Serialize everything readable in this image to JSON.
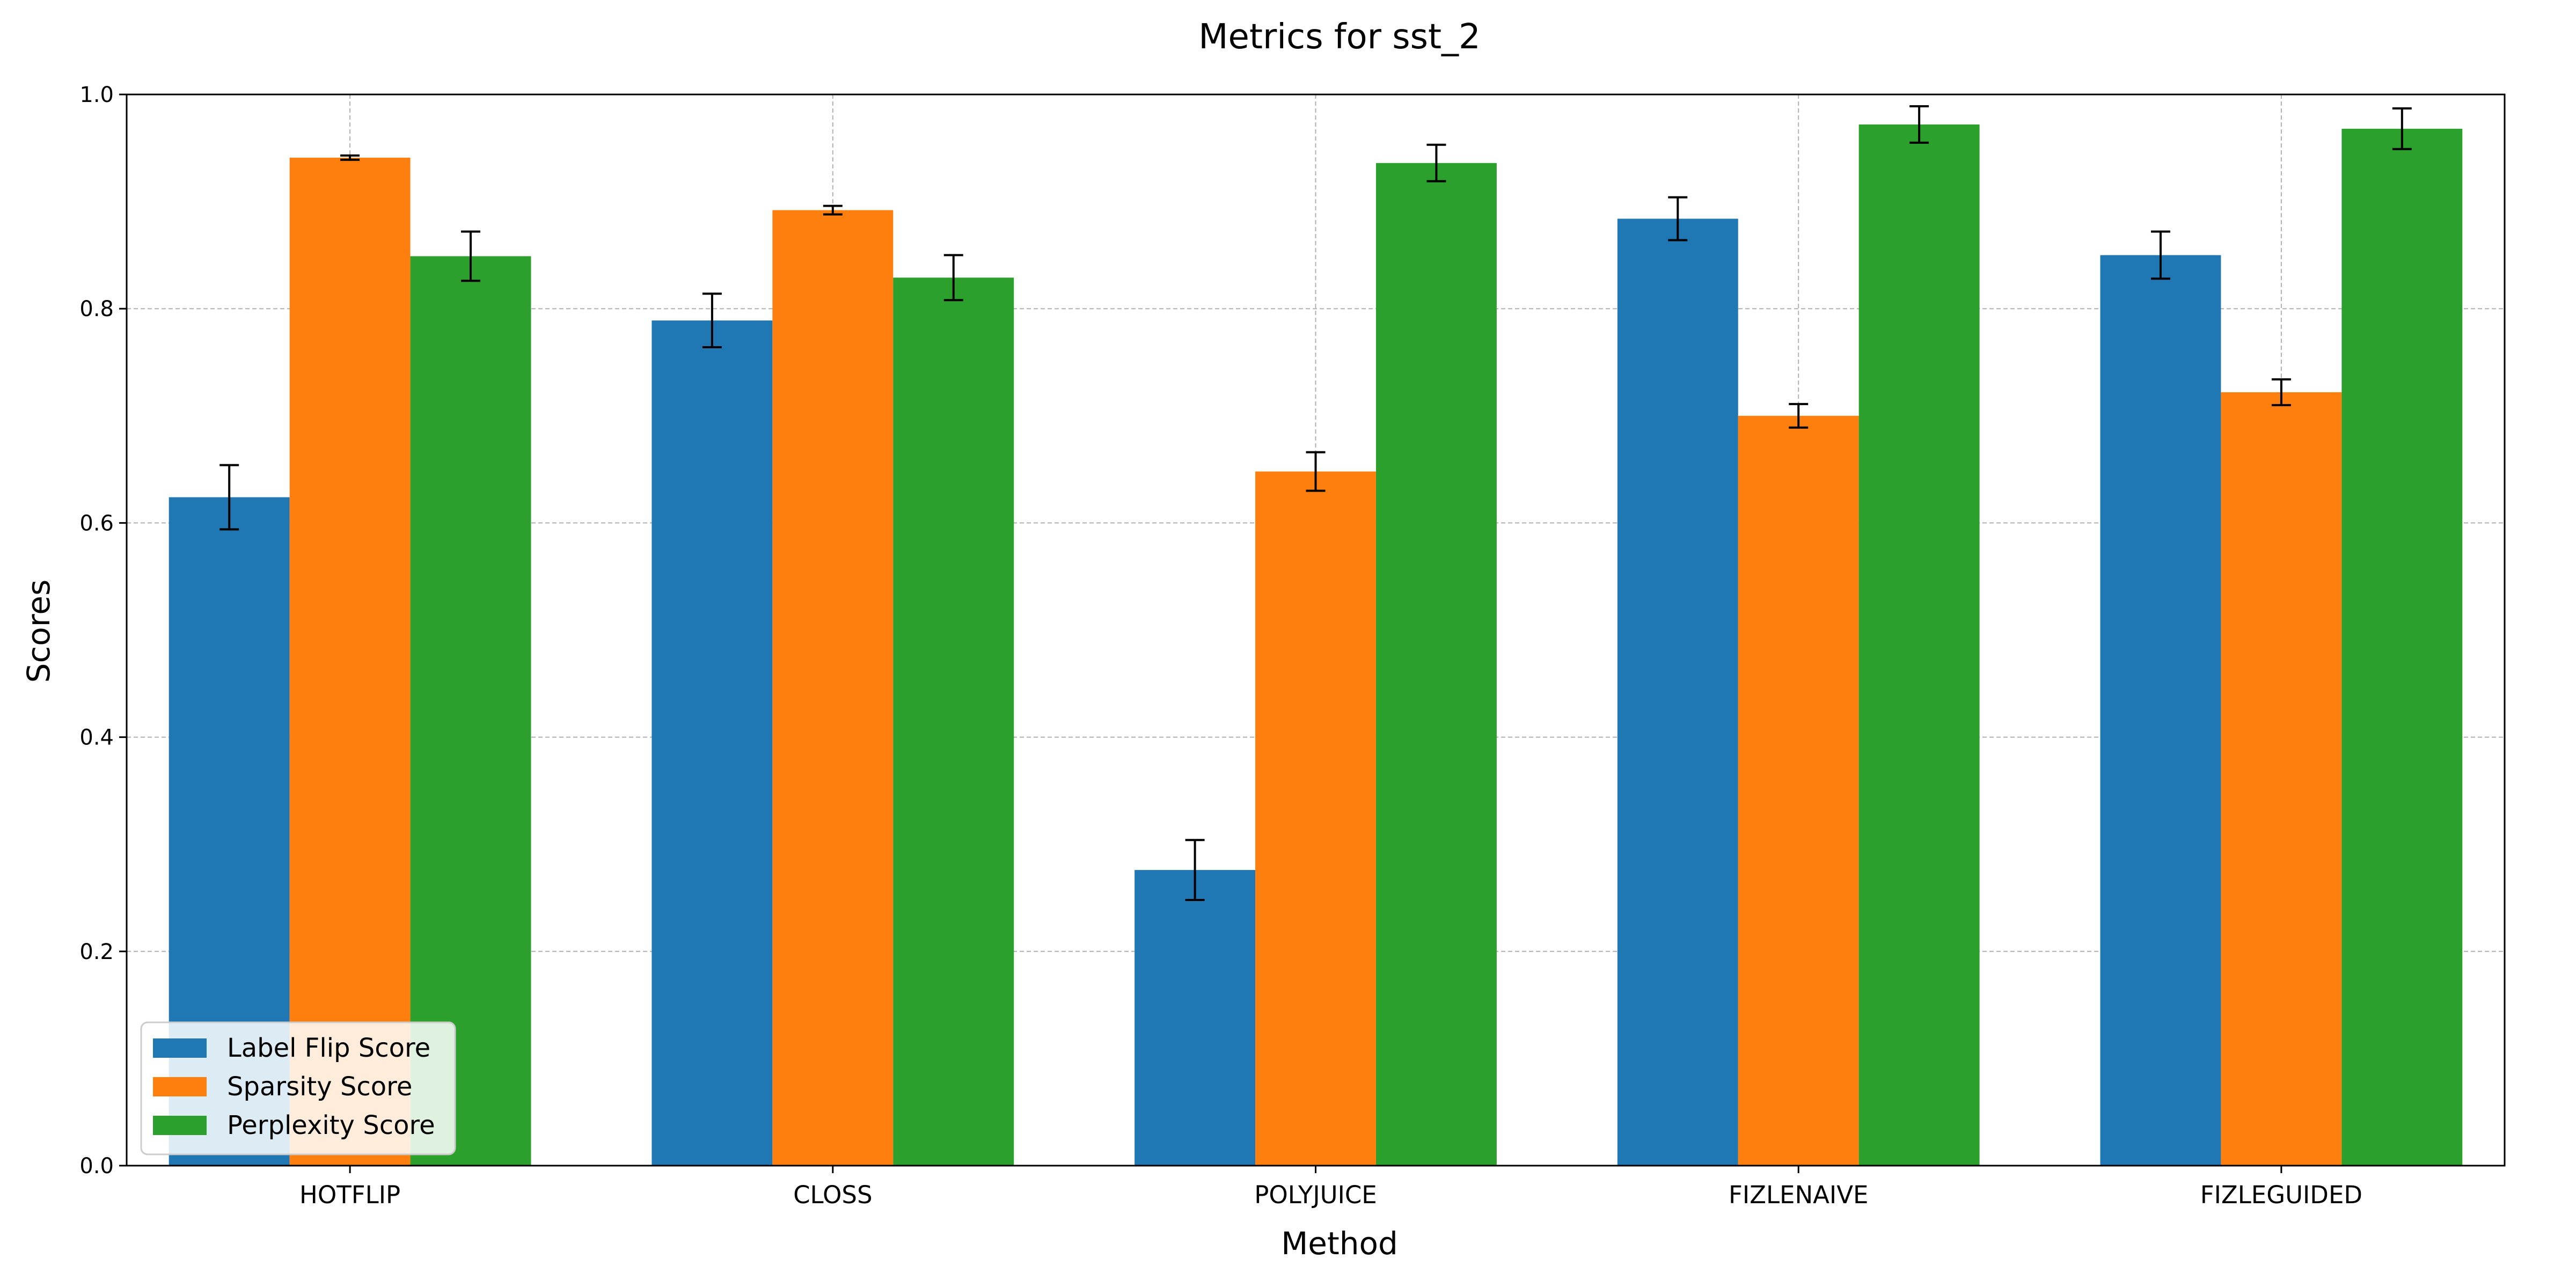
{
  "chart_data": {
    "type": "bar",
    "title": "Metrics for sst_2",
    "xlabel": "Method",
    "ylabel": "Scores",
    "ylim": [
      0,
      1.0
    ],
    "yticks": [
      "0.0",
      "0.2",
      "0.4",
      "0.6",
      "0.8",
      "1.0"
    ],
    "categories": [
      "HOTFLIP",
      "CLOSS",
      "POLYJUICE",
      "FIZLENAIVE",
      "FIZLEGUIDED"
    ],
    "grid": true,
    "legend_position": "bottom-left",
    "series": [
      {
        "name": "Label Flip Score",
        "color": "#1f77b4",
        "values": [
          0.624,
          0.789,
          0.276,
          0.884,
          0.85
        ],
        "errors": [
          0.03,
          0.025,
          0.028,
          0.02,
          0.022
        ]
      },
      {
        "name": "Sparsity Score",
        "color": "#ff7f0e",
        "values": [
          0.941,
          0.892,
          0.648,
          0.7,
          0.722
        ],
        "errors": [
          0.002,
          0.004,
          0.018,
          0.011,
          0.012
        ]
      },
      {
        "name": "Perplexity Score",
        "color": "#2ca02c",
        "values": [
          0.849,
          0.829,
          0.936,
          0.972,
          0.968
        ],
        "errors": [
          0.023,
          0.021,
          0.017,
          0.017,
          0.019
        ]
      }
    ]
  }
}
